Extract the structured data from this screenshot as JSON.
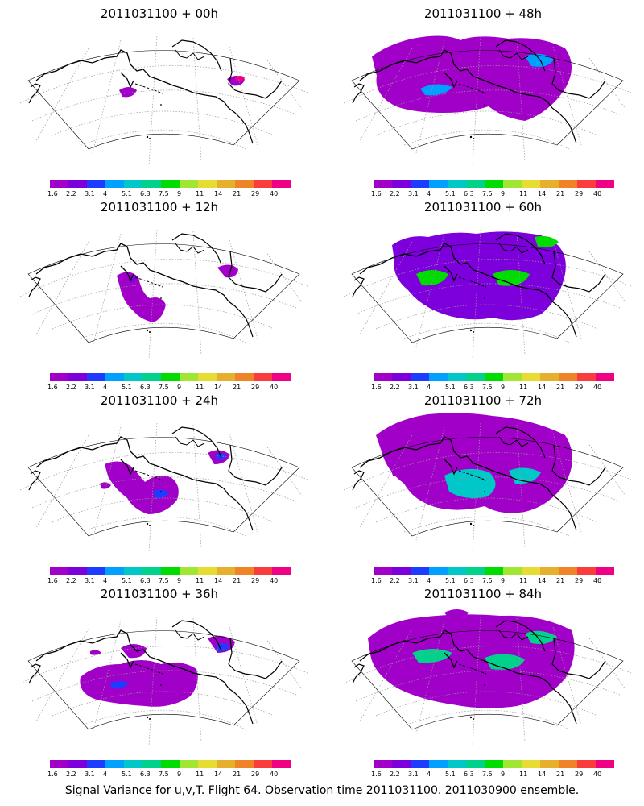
{
  "caption": "Signal Variance for u,v,T. Flight 64. Observation time 2011031100. 2011030900 ensemble.",
  "colorbar": {
    "ticks": [
      "1.6",
      "2.2",
      "3.1",
      "4",
      "5.1",
      "6.3",
      "7.5",
      "9",
      "11",
      "14",
      "21",
      "29",
      "40"
    ],
    "colors": [
      "#a000c8",
      "#7d00dc",
      "#1e3cff",
      "#00a0ff",
      "#00c8c8",
      "#00d28c",
      "#00dc00",
      "#a0e632",
      "#e6dc32",
      "#e6af2d",
      "#f08228",
      "#fa3c3c",
      "#f00082"
    ]
  },
  "chart_data": [
    {
      "type": "heatmap",
      "title": "2011031100 + 00h",
      "lead_hours": 0,
      "max_level": 40,
      "dominant_level": 1.6
    },
    {
      "type": "heatmap",
      "title": "2011031100 + 48h",
      "lead_hours": 48,
      "max_level": 4,
      "dominant_level": 1.6
    },
    {
      "type": "heatmap",
      "title": "2011031100 + 12h",
      "lead_hours": 12,
      "max_level": 2.2,
      "dominant_level": 1.6
    },
    {
      "type": "heatmap",
      "title": "2011031100 + 60h",
      "lead_hours": 60,
      "max_level": 7.5,
      "dominant_level": 2.2
    },
    {
      "type": "heatmap",
      "title": "2011031100 + 24h",
      "lead_hours": 24,
      "max_level": 3.1,
      "dominant_level": 1.6
    },
    {
      "type": "heatmap",
      "title": "2011031100 + 72h",
      "lead_hours": 72,
      "max_level": 5.1,
      "dominant_level": 1.6
    },
    {
      "type": "heatmap",
      "title": "2011031100 + 36h",
      "lead_hours": 36,
      "max_level": 3.1,
      "dominant_level": 1.6
    },
    {
      "type": "heatmap",
      "title": "2011031100 + 84h",
      "lead_hours": 84,
      "max_level": 6.3,
      "dominant_level": 1.6
    }
  ]
}
